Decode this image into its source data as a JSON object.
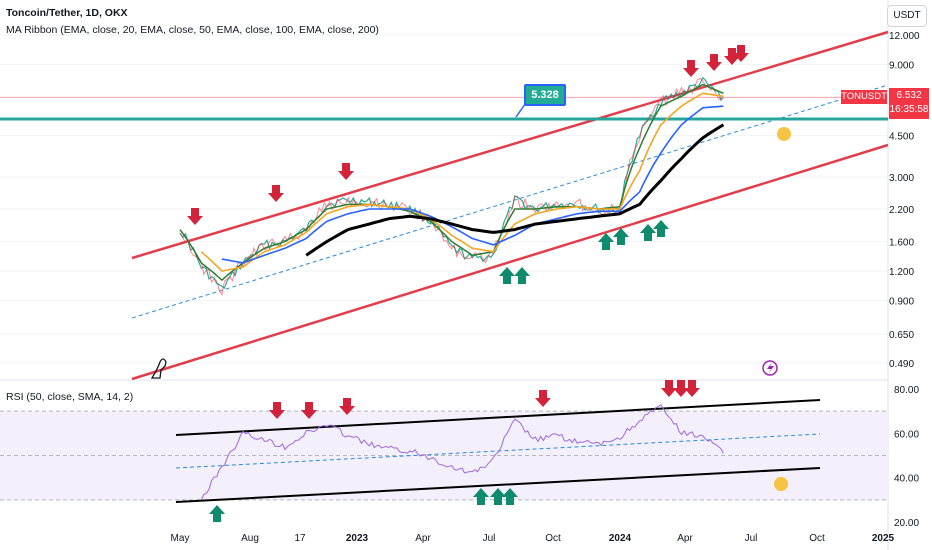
{
  "header": {
    "title": "Toncoin/Tether, 1D, OKX",
    "indicator": "MA Ribbon (EMA, close, 20, EMA, close, 50, EMA, close, 100, EMA, close, 200)",
    "currency": "USDT"
  },
  "rsi_header": "RSI (50, close, SMA, 14, 2)",
  "last_price": {
    "symbol": "TONUSDT",
    "price": "6.532",
    "countdown": "16:35:58"
  },
  "annotation": "5.328",
  "colors": {
    "down_arrow": "#d3233b",
    "up_arrow": "#0e8a6c",
    "channel": "#e13d4b",
    "support_line": "#26a69a",
    "ema20": "#2e7d32",
    "ema50": "#f5a623",
    "ema100": "#2962ff",
    "ema200": "#000000",
    "rsi_line": "#9c6ade",
    "rsi_band": "#f3effb"
  },
  "chart_data": [
    {
      "type": "line",
      "title": "Toncoin/Tether, 1D, OKX",
      "y_scale": "log",
      "ylim": [
        0.4,
        14.0
      ],
      "y_ticks": [
        "12.000",
        "9.000",
        "6.532",
        "4.500",
        "3.000",
        "2.200",
        "1.600",
        "1.200",
        "0.900",
        "0.650",
        "0.490"
      ],
      "x_ticks": [
        "May",
        "Aug",
        "17",
        "2023",
        "Apr",
        "Jul",
        "Oct",
        "2024",
        "Apr",
        "Jul",
        "Oct",
        "2025"
      ],
      "x": [
        "2022-05-15",
        "2022-06-15",
        "2022-07-15",
        "2022-08-15",
        "2022-09-15",
        "2022-10-15",
        "2022-11-15",
        "2022-12-15",
        "2023-01-15",
        "2023-02-15",
        "2023-03-15",
        "2023-04-15",
        "2023-05-15",
        "2023-06-15",
        "2023-07-15",
        "2023-08-15",
        "2023-09-15",
        "2023-10-15",
        "2023-11-15",
        "2023-12-15",
        "2024-01-15",
        "2024-02-15",
        "2024-03-15",
        "2024-04-15",
        "2024-05-15",
        "2024-06-15",
        "2024-07-15"
      ],
      "price": [
        1.8,
        1.25,
        1.0,
        1.3,
        1.55,
        1.6,
        1.8,
        2.3,
        2.4,
        2.35,
        2.3,
        2.2,
        1.95,
        1.5,
        1.35,
        1.4,
        2.4,
        2.2,
        2.3,
        2.3,
        2.2,
        2.2,
        4.5,
        6.3,
        6.8,
        7.6,
        6.53
      ],
      "series": [
        {
          "name": "EMA 20",
          "values": [
            1.8,
            1.3,
            1.1,
            1.3,
            1.5,
            1.6,
            1.8,
            2.2,
            2.3,
            2.3,
            2.25,
            2.15,
            1.95,
            1.6,
            1.4,
            1.45,
            2.2,
            2.2,
            2.25,
            2.25,
            2.2,
            2.25,
            4.0,
            6.0,
            6.6,
            7.4,
            6.8
          ]
        },
        {
          "name": "EMA 50",
          "values": [
            null,
            1.45,
            1.2,
            1.25,
            1.45,
            1.55,
            1.75,
            2.1,
            2.25,
            2.3,
            2.25,
            2.2,
            2.0,
            1.7,
            1.5,
            1.45,
            1.9,
            2.1,
            2.2,
            2.25,
            2.2,
            2.2,
            3.2,
            5.0,
            6.0,
            6.8,
            6.6
          ]
        },
        {
          "name": "EMA 100",
          "values": [
            null,
            null,
            1.35,
            1.3,
            1.4,
            1.5,
            1.65,
            1.95,
            2.1,
            2.2,
            2.2,
            2.2,
            2.05,
            1.85,
            1.65,
            1.55,
            1.7,
            1.9,
            2.0,
            2.1,
            2.15,
            2.15,
            2.6,
            3.8,
            5.0,
            5.9,
            6.0
          ]
        },
        {
          "name": "EMA 200",
          "values": [
            null,
            null,
            null,
            null,
            null,
            null,
            1.4,
            1.6,
            1.8,
            1.9,
            2.0,
            2.05,
            2.0,
            1.9,
            1.8,
            1.75,
            1.8,
            1.9,
            1.95,
            2.0,
            2.05,
            2.1,
            2.3,
            2.9,
            3.6,
            4.4,
            5.0
          ]
        }
      ]
    },
    {
      "type": "line",
      "title": "RSI (50, close, SMA, 14, 2)",
      "ylim": [
        20,
        85
      ],
      "y_ticks": [
        "80.00",
        "60.00",
        "40.00",
        "20.00"
      ],
      "x": [
        "2022-05-15",
        "2022-06-15",
        "2022-07-15",
        "2022-08-15",
        "2022-09-15",
        "2022-10-15",
        "2022-11-15",
        "2022-12-15",
        "2023-01-15",
        "2023-02-15",
        "2023-03-15",
        "2023-04-15",
        "2023-05-15",
        "2023-06-15",
        "2023-07-15",
        "2023-08-15",
        "2023-09-15",
        "2023-10-15",
        "2023-11-15",
        "2023-12-15",
        "2024-01-15",
        "2024-02-15",
        "2024-03-15",
        "2024-04-15",
        "2024-05-15",
        "2024-06-15",
        "2024-07-15"
      ],
      "series": [
        {
          "name": "RSI",
          "values": [
            null,
            30,
            45,
            60,
            57,
            54,
            60,
            64,
            59,
            55,
            53,
            52,
            49,
            45,
            42,
            48,
            66,
            57,
            59,
            56,
            55,
            58,
            66,
            72,
            60,
            59,
            51
          ]
        }
      ]
    }
  ]
}
